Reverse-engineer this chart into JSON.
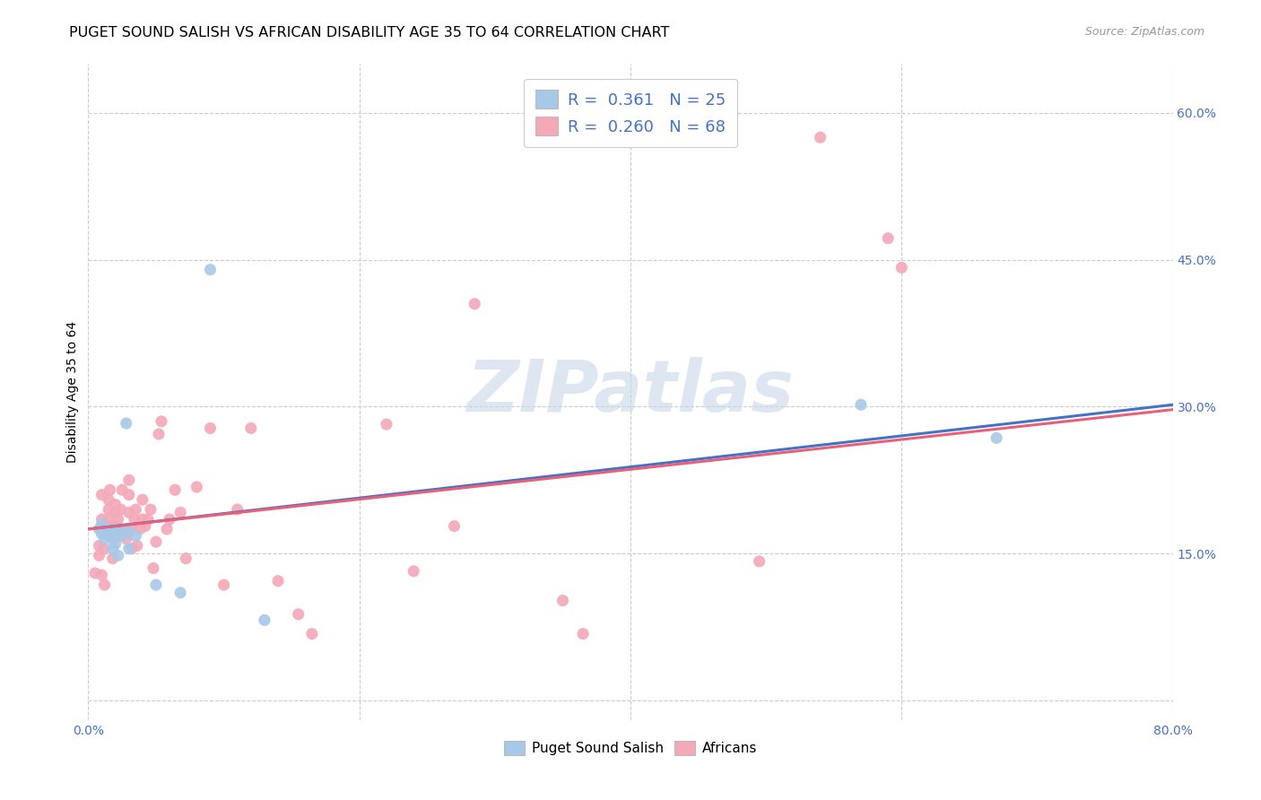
{
  "title": "PUGET SOUND SALISH VS AFRICAN DISABILITY AGE 35 TO 64 CORRELATION CHART",
  "source": "Source: ZipAtlas.com",
  "ylabel": "Disability Age 35 to 64",
  "xlim": [
    0.0,
    0.8
  ],
  "ylim": [
    -0.02,
    0.65
  ],
  "xticks": [
    0.0,
    0.2,
    0.4,
    0.6,
    0.8
  ],
  "xticklabels": [
    "0.0%",
    "",
    "",
    "",
    "80.0%"
  ],
  "yticks": [
    0.0,
    0.15,
    0.3,
    0.45,
    0.6
  ],
  "yticklabels_right": [
    "",
    "15.0%",
    "30.0%",
    "45.0%",
    "60.0%"
  ],
  "blue_R": 0.361,
  "blue_N": 25,
  "pink_R": 0.26,
  "pink_N": 68,
  "blue_color": "#a8c8e8",
  "pink_color": "#f4a8b8",
  "blue_line_color": "#4472c4",
  "pink_line_color": "#e8607a",
  "blue_scatter": [
    [
      0.008,
      0.175
    ],
    [
      0.01,
      0.17
    ],
    [
      0.01,
      0.18
    ],
    [
      0.012,
      0.165
    ],
    [
      0.014,
      0.175
    ],
    [
      0.015,
      0.172
    ],
    [
      0.016,
      0.168
    ],
    [
      0.018,
      0.155
    ],
    [
      0.018,
      0.175
    ],
    [
      0.02,
      0.172
    ],
    [
      0.02,
      0.168
    ],
    [
      0.02,
      0.16
    ],
    [
      0.022,
      0.148
    ],
    [
      0.024,
      0.175
    ],
    [
      0.025,
      0.168
    ],
    [
      0.028,
      0.283
    ],
    [
      0.03,
      0.172
    ],
    [
      0.03,
      0.155
    ],
    [
      0.035,
      0.168
    ],
    [
      0.05,
      0.118
    ],
    [
      0.068,
      0.11
    ],
    [
      0.09,
      0.44
    ],
    [
      0.57,
      0.302
    ],
    [
      0.67,
      0.268
    ],
    [
      0.13,
      0.082
    ]
  ],
  "pink_scatter": [
    [
      0.005,
      0.13
    ],
    [
      0.008,
      0.148
    ],
    [
      0.008,
      0.158
    ],
    [
      0.01,
      0.175
    ],
    [
      0.01,
      0.185
    ],
    [
      0.01,
      0.128
    ],
    [
      0.01,
      0.21
    ],
    [
      0.012,
      0.118
    ],
    [
      0.012,
      0.155
    ],
    [
      0.014,
      0.17
    ],
    [
      0.014,
      0.178
    ],
    [
      0.015,
      0.185
    ],
    [
      0.015,
      0.195
    ],
    [
      0.015,
      0.205
    ],
    [
      0.016,
      0.215
    ],
    [
      0.018,
      0.145
    ],
    [
      0.018,
      0.165
    ],
    [
      0.02,
      0.178
    ],
    [
      0.02,
      0.192
    ],
    [
      0.02,
      0.2
    ],
    [
      0.022,
      0.175
    ],
    [
      0.022,
      0.185
    ],
    [
      0.024,
      0.195
    ],
    [
      0.025,
      0.175
    ],
    [
      0.025,
      0.215
    ],
    [
      0.028,
      0.165
    ],
    [
      0.028,
      0.175
    ],
    [
      0.03,
      0.192
    ],
    [
      0.03,
      0.21
    ],
    [
      0.03,
      0.225
    ],
    [
      0.032,
      0.155
    ],
    [
      0.032,
      0.175
    ],
    [
      0.034,
      0.185
    ],
    [
      0.035,
      0.195
    ],
    [
      0.036,
      0.158
    ],
    [
      0.038,
      0.175
    ],
    [
      0.04,
      0.185
    ],
    [
      0.04,
      0.205
    ],
    [
      0.042,
      0.178
    ],
    [
      0.044,
      0.185
    ],
    [
      0.046,
      0.195
    ],
    [
      0.048,
      0.135
    ],
    [
      0.05,
      0.162
    ],
    [
      0.052,
      0.272
    ],
    [
      0.054,
      0.285
    ],
    [
      0.058,
      0.175
    ],
    [
      0.06,
      0.185
    ],
    [
      0.064,
      0.215
    ],
    [
      0.068,
      0.192
    ],
    [
      0.072,
      0.145
    ],
    [
      0.08,
      0.218
    ],
    [
      0.09,
      0.278
    ],
    [
      0.1,
      0.118
    ],
    [
      0.11,
      0.195
    ],
    [
      0.12,
      0.278
    ],
    [
      0.14,
      0.122
    ],
    [
      0.155,
      0.088
    ],
    [
      0.165,
      0.068
    ],
    [
      0.22,
      0.282
    ],
    [
      0.24,
      0.132
    ],
    [
      0.27,
      0.178
    ],
    [
      0.285,
      0.405
    ],
    [
      0.35,
      0.102
    ],
    [
      0.365,
      0.068
    ],
    [
      0.495,
      0.142
    ],
    [
      0.54,
      0.575
    ],
    [
      0.59,
      0.472
    ],
    [
      0.6,
      0.442
    ]
  ],
  "blue_trend": [
    0.0,
    0.8,
    0.175,
    0.302
  ],
  "pink_trend": [
    0.0,
    0.8,
    0.175,
    0.297
  ],
  "legend_labels": [
    "Puget Sound Salish",
    "Africans"
  ],
  "watermark": "ZIPatlas",
  "title_fontsize": 11.5,
  "axis_label_fontsize": 10,
  "tick_fontsize": 10,
  "source_fontsize": 9,
  "legend_stats_fontsize": 13
}
